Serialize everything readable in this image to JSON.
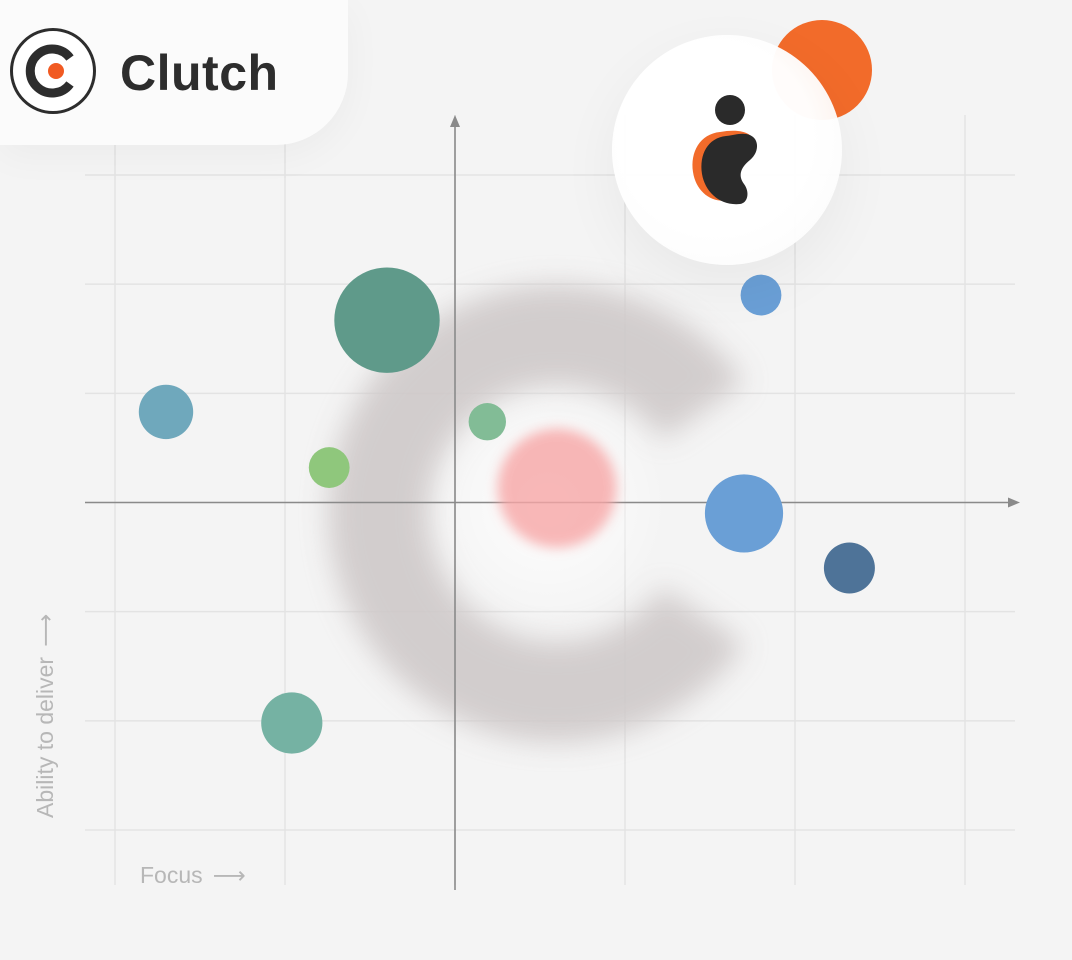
{
  "brand": {
    "name": "Clutch",
    "logo_icon": "clutch-c-logo-icon",
    "accent": "#f15a22",
    "dark": "#2d2d2d"
  },
  "badge": {
    "icon": "person-silhouette-icon",
    "accent": "#f26b2a"
  },
  "chart_data": {
    "type": "scatter",
    "title": "",
    "xlabel": "Focus",
    "ylabel": "Ability to deliver",
    "xlabel_arrow": "⟶",
    "ylabel_arrow": "⟶",
    "xlim": [
      -2,
      3
    ],
    "ylim": [
      -3,
      3
    ],
    "grid": true,
    "tick_labels": false,
    "legend": "none",
    "points": [
      {
        "x": 1.8,
        "y": 1.9,
        "size": 0.12,
        "color": "#6a9fd6"
      },
      {
        "x": -0.4,
        "y": 1.67,
        "size": 0.31,
        "color": "#5f9a8a"
      },
      {
        "x": -1.7,
        "y": 0.83,
        "size": 0.16,
        "color": "#6fa8bc"
      },
      {
        "x": 0.19,
        "y": 0.74,
        "size": 0.11,
        "color": "#82bc96"
      },
      {
        "x": -0.74,
        "y": 0.32,
        "size": 0.12,
        "color": "#8fc77c"
      },
      {
        "x": 0.6,
        "y": 0.13,
        "size": 0.35,
        "color": "#f7a6a6"
      },
      {
        "x": 1.7,
        "y": -0.1,
        "size": 0.23,
        "color": "#6a9fd6"
      },
      {
        "x": 2.32,
        "y": -0.6,
        "size": 0.15,
        "color": "#4e7398"
      },
      {
        "x": -0.96,
        "y": -2.02,
        "size": 0.18,
        "color": "#75b2a3"
      }
    ]
  }
}
